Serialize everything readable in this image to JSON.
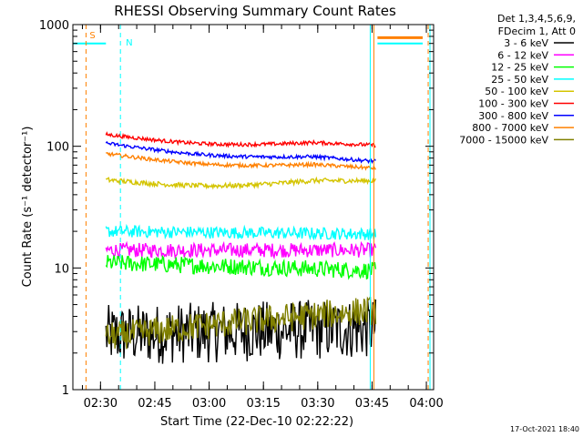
{
  "chart_data": {
    "type": "line",
    "title": "RHESSI Observing Summary Count Rates",
    "xlabel": "Start Time (22-Dec-10 02:22:22)",
    "ylabel": "Count Rate (s⁻¹ detector⁻¹)",
    "x_ticks": [
      "02:30",
      "02:45",
      "03:00",
      "03:15",
      "03:30",
      "03:45",
      "04:00"
    ],
    "y_ticks": [
      "1",
      "10",
      "100",
      "1000"
    ],
    "xlim": [
      "02:22:22",
      "04:02:00"
    ],
    "ylim": [
      1,
      1000
    ],
    "yscale": "log",
    "grid": false,
    "legend_position": "top-right",
    "legend_header": [
      "Det 1,3,4,5,6,9,",
      "FDecim 1, Att 0"
    ],
    "series": [
      {
        "name": "3 - 6 keV",
        "color": "#000000",
        "level_start": 2.8,
        "level_end": 3.2,
        "noise": 0.25
      },
      {
        "name": "6 - 12 keV",
        "color": "#ff00ff",
        "level_start": 14,
        "level_end": 14,
        "noise": 0.06
      },
      {
        "name": "12 - 25 keV",
        "color": "#00ff00",
        "level_start": 11,
        "level_end": 9.5,
        "noise": 0.07
      },
      {
        "name": "25 - 50 keV",
        "color": "#00ffff",
        "level_start": 20,
        "level_end": 19,
        "noise": 0.05
      },
      {
        "name": "50 - 100 keV",
        "color": "#d4c400",
        "level_start": 53,
        "level_end": 52,
        "noise": 0.02
      },
      {
        "name": "100 - 300 keV",
        "color": "#ff0000",
        "level_start": 125,
        "level_end": 102,
        "noise": 0.015
      },
      {
        "name": "300 - 800 keV",
        "color": "#0000ff",
        "level_start": 106,
        "level_end": 75,
        "noise": 0.015
      },
      {
        "name": "800 - 7000 keV",
        "color": "#ff8000",
        "level_start": 87,
        "level_end": 66,
        "noise": 0.015
      },
      {
        "name": "7000 - 15000 keV",
        "color": "#808000",
        "level_start": 2.7,
        "level_end": 4.5,
        "noise": 0.12
      }
    ],
    "annotations": [
      {
        "text": "S",
        "color": "#ff8000"
      },
      {
        "text": "N",
        "color": "#00ffff"
      }
    ],
    "timestamp": "17-Oct-2021 18:40"
  }
}
